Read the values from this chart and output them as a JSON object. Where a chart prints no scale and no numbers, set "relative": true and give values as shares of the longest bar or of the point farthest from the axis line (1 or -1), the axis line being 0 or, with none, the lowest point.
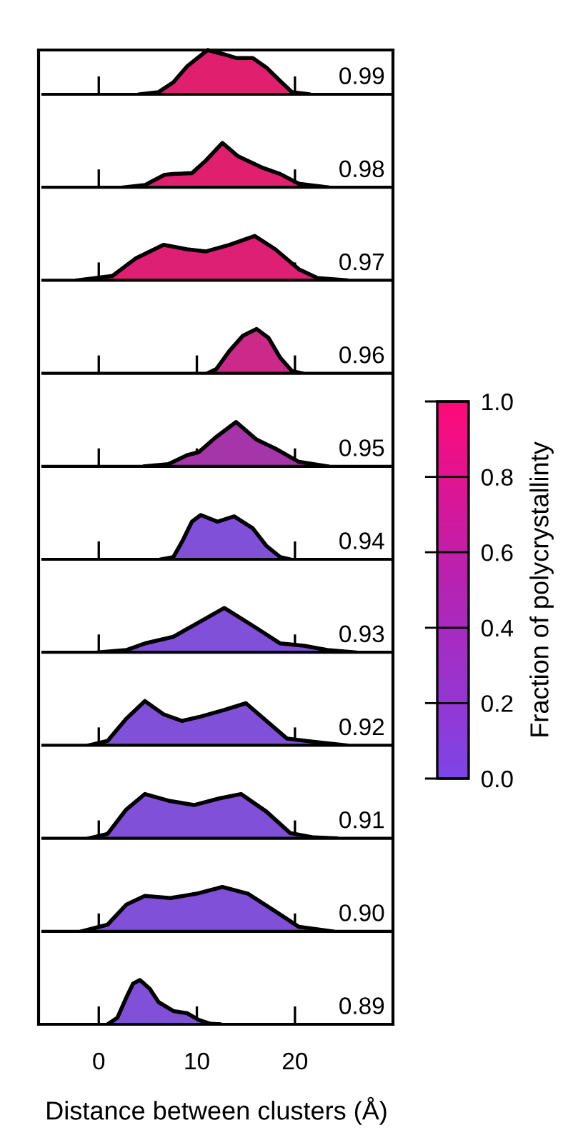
{
  "chart_data": [
    {
      "type": "area",
      "relative": true,
      "xlim": [
        -5.7,
        29.7
      ],
      "xticks": [
        0,
        10,
        20
      ],
      "tick_labels": false,
      "x": [
        4.2,
        6.1,
        7.6,
        9.0,
        11.1,
        12.8,
        14.0,
        15.7,
        17.1,
        18.5,
        19.7,
        21.4
      ],
      "series": [
        {
          "name": "0.99",
          "color": "#e0206e",
          "values": [
            0,
            0.05,
            0.27,
            0.63,
            1.0,
            0.9,
            0.82,
            0.82,
            0.6,
            0.3,
            0.05,
            0
          ]
        }
      ]
    },
    {
      "type": "area",
      "relative": true,
      "xlim": [
        -5.7,
        29.7
      ],
      "xticks": [
        0,
        10,
        20
      ],
      "tick_labels": false,
      "x": [
        2.6,
        4.7,
        6.7,
        7.6,
        9.5,
        10.9,
        12.6,
        14.2,
        16.6,
        18.5,
        20.4,
        23.3
      ],
      "series": [
        {
          "name": "0.98",
          "color": "#e0206e",
          "values": [
            0,
            0.05,
            0.28,
            0.3,
            0.32,
            0.6,
            1.0,
            0.7,
            0.45,
            0.3,
            0.08,
            0
          ]
        }
      ]
    },
    {
      "type": "area",
      "relative": true,
      "xlim": [
        -5.7,
        29.7
      ],
      "xticks": [
        0,
        10,
        20
      ],
      "tick_labels": false,
      "x": [
        -2.2,
        1.4,
        3.8,
        6.6,
        9.0,
        10.9,
        13.3,
        15.9,
        18.0,
        20.4,
        22.3,
        25.2
      ],
      "series": [
        {
          "name": "0.97",
          "color": "#de2075",
          "values": [
            0,
            0.1,
            0.5,
            0.8,
            0.7,
            0.65,
            0.8,
            1.0,
            0.7,
            0.25,
            0.05,
            0
          ]
        }
      ]
    },
    {
      "type": "area",
      "relative": true,
      "xlim": [
        -5.7,
        29.7
      ],
      "xticks": [
        0,
        10,
        20
      ],
      "tick_labels": false,
      "x": [
        11.1,
        12.0,
        13.3,
        14.7,
        16.1,
        17.3,
        18.5,
        19.7,
        20.7
      ],
      "series": [
        {
          "name": "0.96",
          "color": "#cc2a8a",
          "values": [
            0,
            0.1,
            0.5,
            0.85,
            1.0,
            0.8,
            0.35,
            0.05,
            0
          ]
        }
      ]
    },
    {
      "type": "area",
      "relative": true,
      "xlim": [
        -5.7,
        29.7
      ],
      "xticks": [
        0,
        10,
        20
      ],
      "tick_labels": false,
      "x": [
        4.7,
        7.1,
        9.0,
        10.2,
        11.9,
        14.0,
        16.1,
        18.0,
        20.4,
        23.3
      ],
      "series": [
        {
          "name": "0.95",
          "color": "#a535a8",
          "values": [
            0,
            0.05,
            0.25,
            0.32,
            0.65,
            1.0,
            0.6,
            0.4,
            0.1,
            0
          ]
        }
      ]
    },
    {
      "type": "area",
      "relative": true,
      "xlim": [
        -5.7,
        29.7
      ],
      "xticks": [
        0,
        10,
        20
      ],
      "tick_labels": false,
      "x": [
        6.4,
        7.6,
        8.5,
        9.5,
        10.4,
        12.1,
        13.8,
        15.7,
        17.1,
        18.5,
        19.5
      ],
      "series": [
        {
          "name": "0.94",
          "color": "#8050d8",
          "values": [
            0,
            0.05,
            0.4,
            0.85,
            1.0,
            0.85,
            0.97,
            0.7,
            0.3,
            0.05,
            0
          ]
        }
      ]
    },
    {
      "type": "area",
      "relative": true,
      "xlim": [
        -5.7,
        29.7
      ],
      "xticks": [
        0,
        10,
        20
      ],
      "tick_labels": false,
      "x": [
        0,
        2.8,
        4.7,
        7.6,
        10.0,
        12.8,
        15.7,
        18.5,
        20.9,
        23.3,
        26.1
      ],
      "series": [
        {
          "name": "0.93",
          "color": "#8050d8",
          "values": [
            0,
            0.05,
            0.2,
            0.35,
            0.65,
            1.0,
            0.6,
            0.2,
            0.15,
            0.05,
            0
          ]
        }
      ]
    },
    {
      "type": "area",
      "relative": true,
      "xlim": [
        -5.7,
        29.7
      ],
      "xticks": [
        0,
        10,
        20
      ],
      "tick_labels": false,
      "x": [
        -1.0,
        0.9,
        2.8,
        4.7,
        6.6,
        8.5,
        10.4,
        12.8,
        15.0,
        17.1,
        19.2,
        21.9,
        25.2
      ],
      "series": [
        {
          "name": "0.92",
          "color": "#8050d8",
          "values": [
            0,
            0.1,
            0.6,
            1.0,
            0.7,
            0.55,
            0.65,
            0.8,
            0.95,
            0.55,
            0.15,
            0.08,
            0
          ]
        }
      ]
    },
    {
      "type": "area",
      "relative": true,
      "xlim": [
        -5.7,
        29.7
      ],
      "xticks": [
        0,
        10,
        20
      ],
      "tick_labels": false,
      "x": [
        -1.0,
        0.9,
        2.8,
        4.7,
        7.1,
        9.7,
        12.3,
        14.5,
        17.1,
        19.5,
        21.9,
        24.2
      ],
      "series": [
        {
          "name": "0.91",
          "color": "#8050d8",
          "values": [
            0,
            0.1,
            0.65,
            1.0,
            0.85,
            0.75,
            0.9,
            1.0,
            0.6,
            0.12,
            0.02,
            0
          ]
        }
      ]
    },
    {
      "type": "area",
      "relative": true,
      "xlim": [
        -5.7,
        29.7
      ],
      "xticks": [
        0,
        10,
        20
      ],
      "tick_labels": false,
      "x": [
        -1.7,
        0.9,
        2.8,
        4.7,
        7.3,
        10.0,
        12.6,
        15.2,
        18.0,
        20.4,
        23.8
      ],
      "series": [
        {
          "name": "0.90",
          "color": "#8050d8",
          "values": [
            0,
            0.15,
            0.6,
            0.8,
            0.75,
            0.85,
            1.0,
            0.85,
            0.45,
            0.1,
            0
          ]
        }
      ]
    },
    {
      "type": "area",
      "relative": true,
      "xlim": [
        -5.7,
        29.7
      ],
      "xticks": [
        0,
        10,
        20
      ],
      "tick_labels": "x",
      "xlabel": "Distance between clusters (Å)",
      "x": [
        0.9,
        1.9,
        2.8,
        3.5,
        4.2,
        5.2,
        6.1,
        7.6,
        9.0,
        10.2,
        11.4,
        12.3
      ],
      "series": [
        {
          "name": "0.89",
          "color": "#8050d8",
          "values": [
            0,
            0.15,
            0.6,
            0.92,
            1.0,
            0.8,
            0.5,
            0.3,
            0.25,
            0.1,
            0.01,
            0
          ]
        }
      ],
      "clabel": "Fraction of polycrystallinty",
      "clim": [
        0,
        1
      ],
      "colors": [
        "#7d45e8",
        "#b424b4",
        "#ff0a78"
      ],
      "cticks": [
        {
          "value": 0,
          "label": "0.0"
        },
        {
          "value": 0.2,
          "label": "0.2"
        },
        {
          "value": 0.4,
          "label": "0.4"
        },
        {
          "value": 0.6,
          "label": "0.6"
        },
        {
          "value": 0.8,
          "label": "0.8"
        },
        {
          "value": 1,
          "label": "1.0"
        }
      ]
    }
  ]
}
